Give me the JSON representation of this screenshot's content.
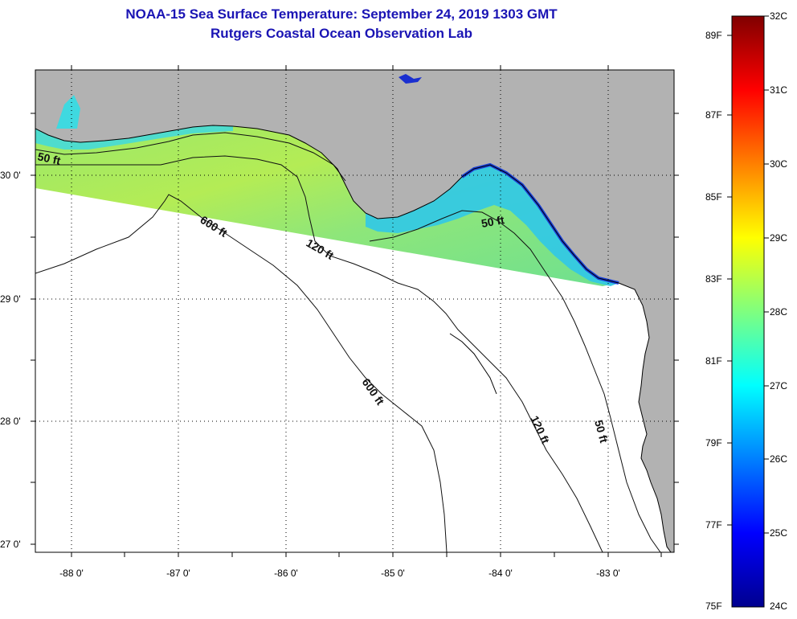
{
  "title": {
    "line1": "NOAA-15 Sea Surface Temperature:  September 24, 2019 1303 GMT",
    "line2": "Rutgers Coastal Ocean Observation Lab"
  },
  "map": {
    "lat_labels": [
      "30 0'",
      "29 0'",
      "28 0'",
      "27 0'"
    ],
    "lon_labels": [
      "-88 0'",
      "-87 0'",
      "-86 0'",
      "-85 0'",
      "-84 0'",
      "-83 0'"
    ],
    "contour_labels": [
      "50 ft",
      "600 ft",
      "120 ft",
      "50 ft",
      "600 ft",
      "120 ft",
      "50 ft"
    ],
    "colors": {
      "land": "#b2b2b2",
      "ocean_nodata": "#ffffff"
    }
  },
  "colorbar": {
    "fahrenheit_labels": [
      "89F",
      "87F",
      "85F",
      "83F",
      "81F",
      "79F",
      "77F",
      "75F"
    ],
    "celsius_labels": [
      "32C",
      "31C",
      "30C",
      "29C",
      "28C",
      "27C",
      "26C",
      "25C",
      "24C"
    ],
    "range_c": [
      24,
      32
    ],
    "colormap": "jet"
  }
}
